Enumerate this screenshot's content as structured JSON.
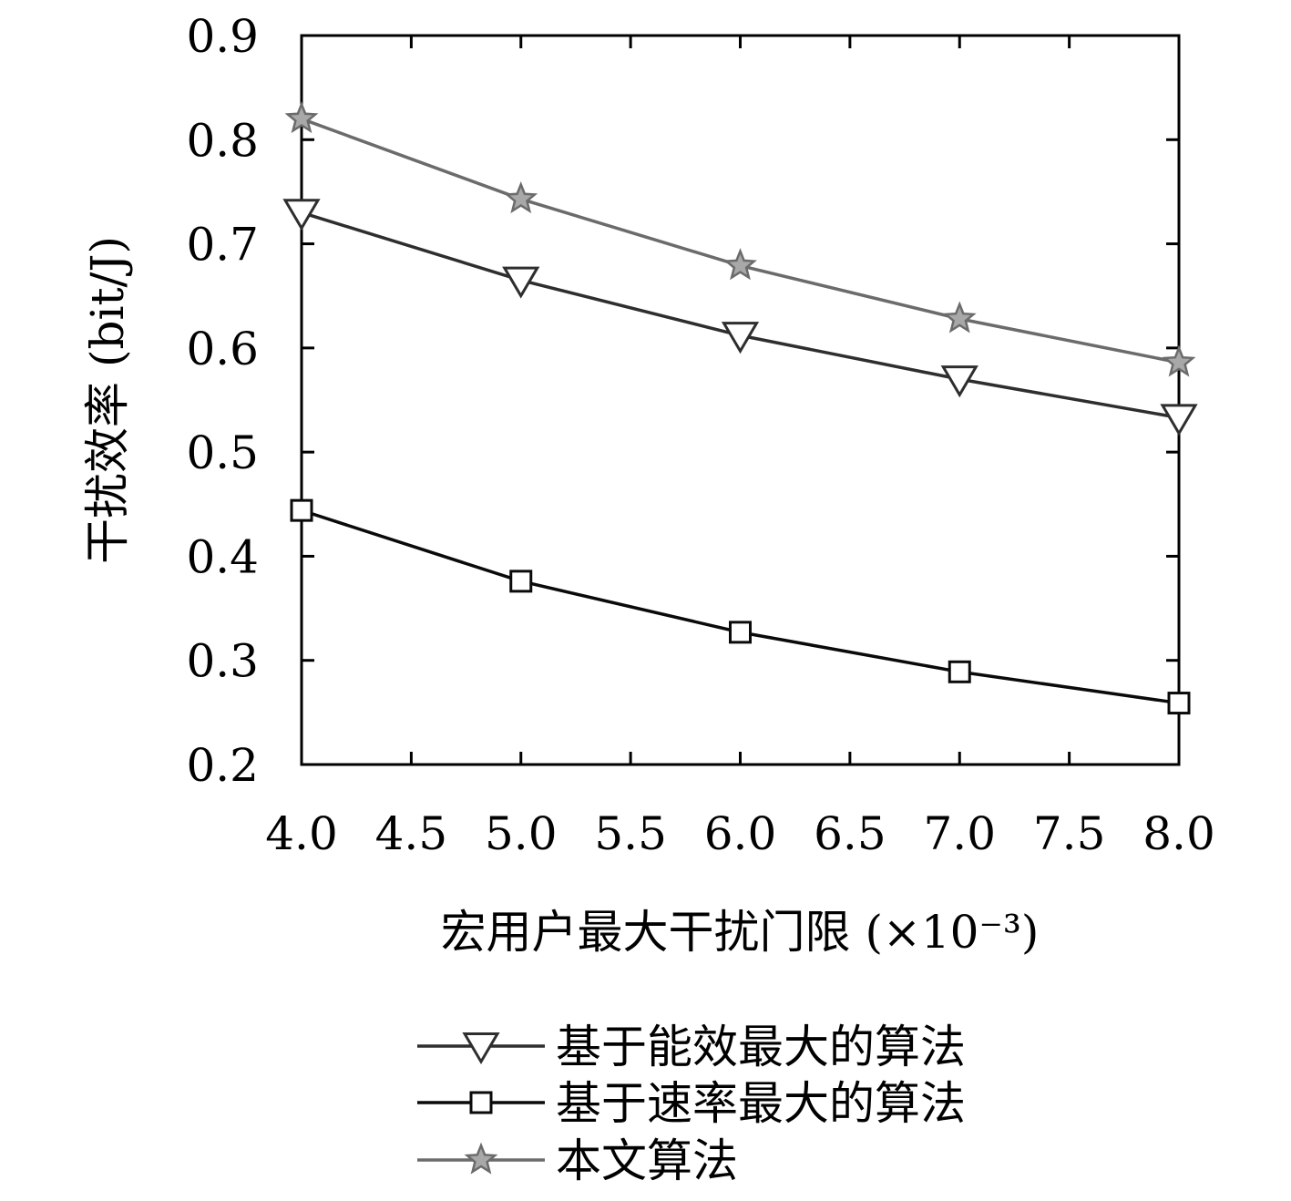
{
  "chart_data": {
    "type": "line",
    "title": "",
    "xlabel": "宏用户最大干扰门限 (×10⁻³)",
    "ylabel": "干扰效率 (bit/J)",
    "xlim": [
      4.0,
      8.0
    ],
    "ylim": [
      0.2,
      0.9
    ],
    "xticks": [
      "4.0",
      "4.5",
      "5.0",
      "5.5",
      "6.0",
      "6.5",
      "7.0",
      "7.5",
      "8.0"
    ],
    "yticks": [
      "0.9",
      "0.8",
      "0.7",
      "0.6",
      "0.5",
      "0.4",
      "0.3",
      "0.2"
    ],
    "grid": false,
    "legend_position": "bottom",
    "x": [
      4.0,
      5.0,
      6.0,
      7.0,
      8.0
    ],
    "series": [
      {
        "name": "基于能效最大的算法",
        "marker": "triangle-down",
        "color": "#2e2e2e",
        "values": [
          0.73,
          0.665,
          0.612,
          0.57,
          0.533
        ]
      },
      {
        "name": "基于速率最大的算法",
        "marker": "square",
        "color": "#0a0a0a",
        "values": [
          0.444,
          0.376,
          0.327,
          0.289,
          0.259
        ]
      },
      {
        "name": "本文算法",
        "marker": "star",
        "color": "#6b6b6b",
        "values": [
          0.82,
          0.743,
          0.679,
          0.628,
          0.586
        ]
      }
    ]
  }
}
